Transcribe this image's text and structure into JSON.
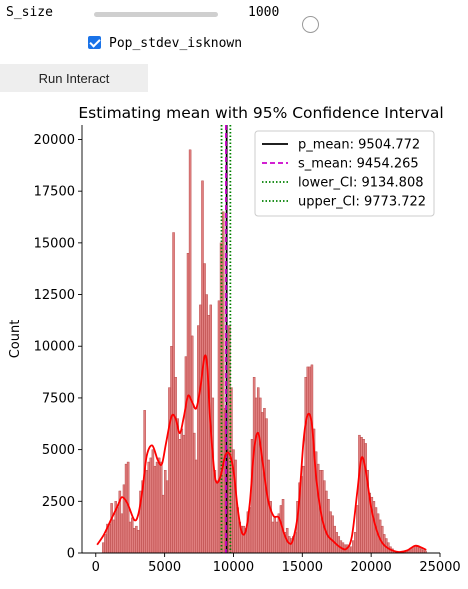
{
  "controls": {
    "slider": {
      "label": "S_size",
      "value": 1000,
      "value_text": "1000"
    },
    "checkbox": {
      "label": "Pop_stdev_isknown",
      "checked": true,
      "accent": "#1a73e8"
    },
    "run_button": {
      "label": "Run Interact"
    }
  },
  "chart_data": {
    "type": "histogram",
    "title": "Estimating mean with 95% Confidence Interval",
    "ylabel": "Count",
    "xlabel": "",
    "xlim": [
      -1000,
      25000
    ],
    "ylim": [
      0,
      20700
    ],
    "xticks": [
      0,
      5000,
      10000,
      15000,
      20000,
      25000
    ],
    "yticks": [
      0,
      2500,
      5000,
      7500,
      10000,
      12500,
      15000,
      17500,
      20000
    ],
    "bar_color": "#e07f7f",
    "bar_edge": "#b03a3a",
    "kde_color": "#ff0000",
    "legend": {
      "location": "upper right",
      "entries": [
        "p_mean: 9504.772",
        "s_mean: 9454.265",
        "lower_CI: 9134.808",
        "upper_CI: 9773.722"
      ]
    },
    "reference_lines": [
      {
        "name": "p_mean",
        "x": 9504.772,
        "color": "#000000",
        "style": "solid"
      },
      {
        "name": "s_mean",
        "x": 9454.265,
        "color": "#cc00cc",
        "style": "dashed"
      },
      {
        "name": "lower_CI",
        "x": 9134.808,
        "color": "#008000",
        "style": "dotted"
      },
      {
        "name": "upper_CI",
        "x": 9773.722,
        "color": "#008000",
        "style": "dotted"
      }
    ],
    "bins": [
      {
        "x": 550,
        "count": 500
      },
      {
        "x": 700,
        "count": 900
      },
      {
        "x": 850,
        "count": 1400
      },
      {
        "x": 1000,
        "count": 1400
      },
      {
        "x": 1150,
        "count": 2400
      },
      {
        "x": 1300,
        "count": 1600
      },
      {
        "x": 1450,
        "count": 2500
      },
      {
        "x": 1600,
        "count": 2200
      },
      {
        "x": 1750,
        "count": 3000
      },
      {
        "x": 1900,
        "count": 1900
      },
      {
        "x": 2050,
        "count": 3300
      },
      {
        "x": 2200,
        "count": 4300
      },
      {
        "x": 2350,
        "count": 4400
      },
      {
        "x": 2500,
        "count": 1500
      },
      {
        "x": 2650,
        "count": 1700
      },
      {
        "x": 2800,
        "count": 1200
      },
      {
        "x": 2950,
        "count": 1300
      },
      {
        "x": 3100,
        "count": 1100
      },
      {
        "x": 3250,
        "count": 3000
      },
      {
        "x": 3400,
        "count": 3500
      },
      {
        "x": 3550,
        "count": 6900
      },
      {
        "x": 3700,
        "count": 4000
      },
      {
        "x": 3850,
        "count": 4400
      },
      {
        "x": 4000,
        "count": 4600
      },
      {
        "x": 4150,
        "count": 5000
      },
      {
        "x": 4300,
        "count": 4200
      },
      {
        "x": 4450,
        "count": 4400
      },
      {
        "x": 4600,
        "count": 4600
      },
      {
        "x": 4750,
        "count": 4400
      },
      {
        "x": 4900,
        "count": 2800
      },
      {
        "x": 5050,
        "count": 4000
      },
      {
        "x": 5200,
        "count": 3500
      },
      {
        "x": 5350,
        "count": 8000
      },
      {
        "x": 5500,
        "count": 10000
      },
      {
        "x": 5650,
        "count": 15500
      },
      {
        "x": 5800,
        "count": 8500
      },
      {
        "x": 5950,
        "count": 6500
      },
      {
        "x": 6100,
        "count": 5500
      },
      {
        "x": 6250,
        "count": 6000
      },
      {
        "x": 6400,
        "count": 5700
      },
      {
        "x": 6550,
        "count": 9500
      },
      {
        "x": 6700,
        "count": 14500
      },
      {
        "x": 6850,
        "count": 19500
      },
      {
        "x": 7000,
        "count": 10500
      },
      {
        "x": 7150,
        "count": 5800
      },
      {
        "x": 7300,
        "count": 4500
      },
      {
        "x": 7450,
        "count": 11000
      },
      {
        "x": 7600,
        "count": 12000
      },
      {
        "x": 7750,
        "count": 18000
      },
      {
        "x": 7900,
        "count": 14000
      },
      {
        "x": 8050,
        "count": 12500
      },
      {
        "x": 8200,
        "count": 11500
      },
      {
        "x": 8350,
        "count": 12000
      },
      {
        "x": 8500,
        "count": 7500
      },
      {
        "x": 8650,
        "count": 4000
      },
      {
        "x": 8800,
        "count": 3500
      },
      {
        "x": 8950,
        "count": 12200
      },
      {
        "x": 9100,
        "count": 15000
      },
      {
        "x": 9250,
        "count": 16500
      },
      {
        "x": 9400,
        "count": 7000
      },
      {
        "x": 9550,
        "count": 5000
      },
      {
        "x": 9700,
        "count": 11000
      },
      {
        "x": 9850,
        "count": 8000
      },
      {
        "x": 10000,
        "count": 5000
      },
      {
        "x": 10150,
        "count": 4500
      },
      {
        "x": 10300,
        "count": 2200
      },
      {
        "x": 10450,
        "count": 1500
      },
      {
        "x": 10600,
        "count": 1300
      },
      {
        "x": 10750,
        "count": 1300
      },
      {
        "x": 10900,
        "count": 1200
      },
      {
        "x": 11050,
        "count": 2000
      },
      {
        "x": 11200,
        "count": 2200
      },
      {
        "x": 11350,
        "count": 5500
      },
      {
        "x": 11500,
        "count": 8500
      },
      {
        "x": 11650,
        "count": 7500
      },
      {
        "x": 11800,
        "count": 8000
      },
      {
        "x": 11950,
        "count": 7500
      },
      {
        "x": 12100,
        "count": 6800
      },
      {
        "x": 12250,
        "count": 7000
      },
      {
        "x": 12400,
        "count": 6500
      },
      {
        "x": 12550,
        "count": 4500
      },
      {
        "x": 12700,
        "count": 2500
      },
      {
        "x": 12850,
        "count": 1500
      },
      {
        "x": 13000,
        "count": 1700
      },
      {
        "x": 13150,
        "count": 1500
      },
      {
        "x": 13300,
        "count": 1900
      },
      {
        "x": 13450,
        "count": 2300
      },
      {
        "x": 13600,
        "count": 2600
      },
      {
        "x": 13750,
        "count": 1000
      },
      {
        "x": 13900,
        "count": 1200
      },
      {
        "x": 14050,
        "count": 800
      },
      {
        "x": 14200,
        "count": 700
      },
      {
        "x": 14350,
        "count": 800
      },
      {
        "x": 14500,
        "count": 1000
      },
      {
        "x": 14650,
        "count": 2500
      },
      {
        "x": 14800,
        "count": 3400
      },
      {
        "x": 14950,
        "count": 3700
      },
      {
        "x": 15100,
        "count": 4200
      },
      {
        "x": 15250,
        "count": 8500
      },
      {
        "x": 15400,
        "count": 9000
      },
      {
        "x": 15550,
        "count": 9000
      },
      {
        "x": 15700,
        "count": 9100
      },
      {
        "x": 15850,
        "count": 6000
      },
      {
        "x": 16000,
        "count": 4900
      },
      {
        "x": 16150,
        "count": 4300
      },
      {
        "x": 16300,
        "count": 4000
      },
      {
        "x": 16450,
        "count": 4000
      },
      {
        "x": 16600,
        "count": 3500
      },
      {
        "x": 16750,
        "count": 3000
      },
      {
        "x": 16900,
        "count": 2600
      },
      {
        "x": 17050,
        "count": 2000
      },
      {
        "x": 17200,
        "count": 1800
      },
      {
        "x": 17350,
        "count": 1300
      },
      {
        "x": 17500,
        "count": 1000
      },
      {
        "x": 17650,
        "count": 800
      },
      {
        "x": 17800,
        "count": 600
      },
      {
        "x": 17950,
        "count": 500
      },
      {
        "x": 18100,
        "count": 400
      },
      {
        "x": 18250,
        "count": 400
      },
      {
        "x": 18400,
        "count": 300
      },
      {
        "x": 18550,
        "count": 300
      },
      {
        "x": 18700,
        "count": 600
      },
      {
        "x": 18850,
        "count": 1000
      },
      {
        "x": 19000,
        "count": 2300
      },
      {
        "x": 19150,
        "count": 5700
      },
      {
        "x": 19300,
        "count": 5600
      },
      {
        "x": 19450,
        "count": 5500
      },
      {
        "x": 19600,
        "count": 5300
      },
      {
        "x": 19750,
        "count": 4000
      },
      {
        "x": 19900,
        "count": 2900
      },
      {
        "x": 20050,
        "count": 2700
      },
      {
        "x": 20200,
        "count": 2500
      },
      {
        "x": 20350,
        "count": 2200
      },
      {
        "x": 20500,
        "count": 1900
      },
      {
        "x": 20650,
        "count": 1600
      },
      {
        "x": 20800,
        "count": 1300
      },
      {
        "x": 20950,
        "count": 900
      },
      {
        "x": 21100,
        "count": 700
      },
      {
        "x": 21250,
        "count": 500
      },
      {
        "x": 21400,
        "count": 300
      },
      {
        "x": 21550,
        "count": 200
      },
      {
        "x": 21700,
        "count": 100
      },
      {
        "x": 21850,
        "count": 80
      },
      {
        "x": 22000,
        "count": 60
      },
      {
        "x": 22150,
        "count": 50
      },
      {
        "x": 22300,
        "count": 40
      },
      {
        "x": 22450,
        "count": 50
      },
      {
        "x": 22600,
        "count": 100
      },
      {
        "x": 22750,
        "count": 150
      },
      {
        "x": 22900,
        "count": 250
      },
      {
        "x": 23050,
        "count": 300
      },
      {
        "x": 23200,
        "count": 350
      },
      {
        "x": 23350,
        "count": 300
      },
      {
        "x": 23500,
        "count": 250
      },
      {
        "x": 23650,
        "count": 200
      },
      {
        "x": 23800,
        "count": 150
      },
      {
        "x": 23950,
        "count": 100
      }
    ],
    "kde": [
      [
        100,
        400
      ],
      [
        600,
        900
      ],
      [
        1100,
        1600
      ],
      [
        1600,
        2300
      ],
      [
        1900,
        2700
      ],
      [
        2300,
        2400
      ],
      [
        2800,
        1600
      ],
      [
        3100,
        1900
      ],
      [
        3400,
        3100
      ],
      [
        3700,
        4700
      ],
      [
        4100,
        5200
      ],
      [
        4500,
        4500
      ],
      [
        4800,
        4300
      ],
      [
        5100,
        5300
      ],
      [
        5500,
        6600
      ],
      [
        5800,
        6500
      ],
      [
        6100,
        5800
      ],
      [
        6400,
        6600
      ],
      [
        6700,
        7600
      ],
      [
        7000,
        7300
      ],
      [
        7300,
        7000
      ],
      [
        7600,
        8000
      ],
      [
        7900,
        9500
      ],
      [
        8100,
        9000
      ],
      [
        8300,
        6500
      ],
      [
        8600,
        4000
      ],
      [
        8800,
        3400
      ],
      [
        9100,
        3800
      ],
      [
        9400,
        4700
      ],
      [
        9700,
        4800
      ],
      [
        10000,
        4000
      ],
      [
        10300,
        2200
      ],
      [
        10600,
        1000
      ],
      [
        10900,
        1100
      ],
      [
        11200,
        2500
      ],
      [
        11500,
        5000
      ],
      [
        11800,
        5800
      ],
      [
        12100,
        4500
      ],
      [
        12500,
        2600
      ],
      [
        12900,
        1800
      ],
      [
        13300,
        1700
      ],
      [
        13700,
        900
      ],
      [
        14000,
        500
      ],
      [
        14300,
        600
      ],
      [
        14700,
        2000
      ],
      [
        15100,
        5500
      ],
      [
        15400,
        6700
      ],
      [
        15700,
        6200
      ],
      [
        16000,
        3700
      ],
      [
        16400,
        1800
      ],
      [
        16800,
        900
      ],
      [
        17200,
        600
      ],
      [
        17700,
        300
      ],
      [
        18200,
        200
      ],
      [
        18600,
        800
      ],
      [
        19000,
        3000
      ],
      [
        19300,
        4600
      ],
      [
        19600,
        4000
      ],
      [
        20000,
        2200
      ],
      [
        20400,
        1100
      ],
      [
        20800,
        500
      ],
      [
        21300,
        200
      ],
      [
        22000,
        50
      ],
      [
        22600,
        120
      ],
      [
        23200,
        350
      ],
      [
        23700,
        250
      ],
      [
        24000,
        150
      ]
    ]
  }
}
